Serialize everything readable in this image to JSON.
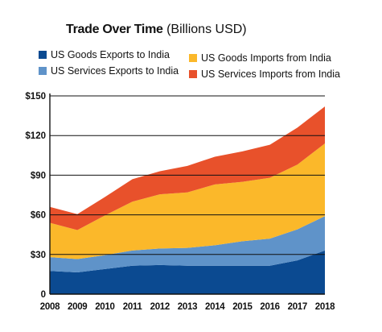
{
  "chart_data": {
    "type": "area",
    "stacked": true,
    "title": "Trade Over Time",
    "subtitle": "(Billions USD)",
    "xlabel": "",
    "ylabel": "",
    "x": [
      "2008",
      "2009",
      "2010",
      "2011",
      "2012",
      "2013",
      "2014",
      "2015",
      "2016",
      "2017",
      "2018"
    ],
    "ylim": [
      0,
      150
    ],
    "yticks": [
      0,
      30,
      60,
      90,
      120,
      150
    ],
    "ytick_labels": [
      "0",
      "$30",
      "$60",
      "$90",
      "$120",
      "$150"
    ],
    "grid": true,
    "legend_position": "top",
    "series": [
      {
        "name": "US Goods Exports to India",
        "color": "#0b4a91",
        "values": [
          17.5,
          16.5,
          19,
          21.5,
          22,
          21.5,
          21.5,
          21.5,
          21.5,
          25.5,
          33
        ]
      },
      {
        "name": "US Services Exports to India",
        "color": "#5f93c9",
        "values": [
          10.5,
          10,
          10.5,
          11.5,
          12.5,
          13.5,
          15.5,
          18.5,
          20.5,
          23.5,
          26
        ]
      },
      {
        "name": "US Goods Imports from India",
        "color": "#fbb82a",
        "values": [
          26,
          22,
          30,
          37,
          41,
          42,
          46,
          45,
          46,
          49,
          55
        ]
      },
      {
        "name": "US Services Imports from India",
        "color": "#e8512b",
        "values": [
          12,
          12,
          14,
          17,
          17.5,
          20,
          21,
          23,
          25,
          28,
          28
        ]
      }
    ]
  }
}
